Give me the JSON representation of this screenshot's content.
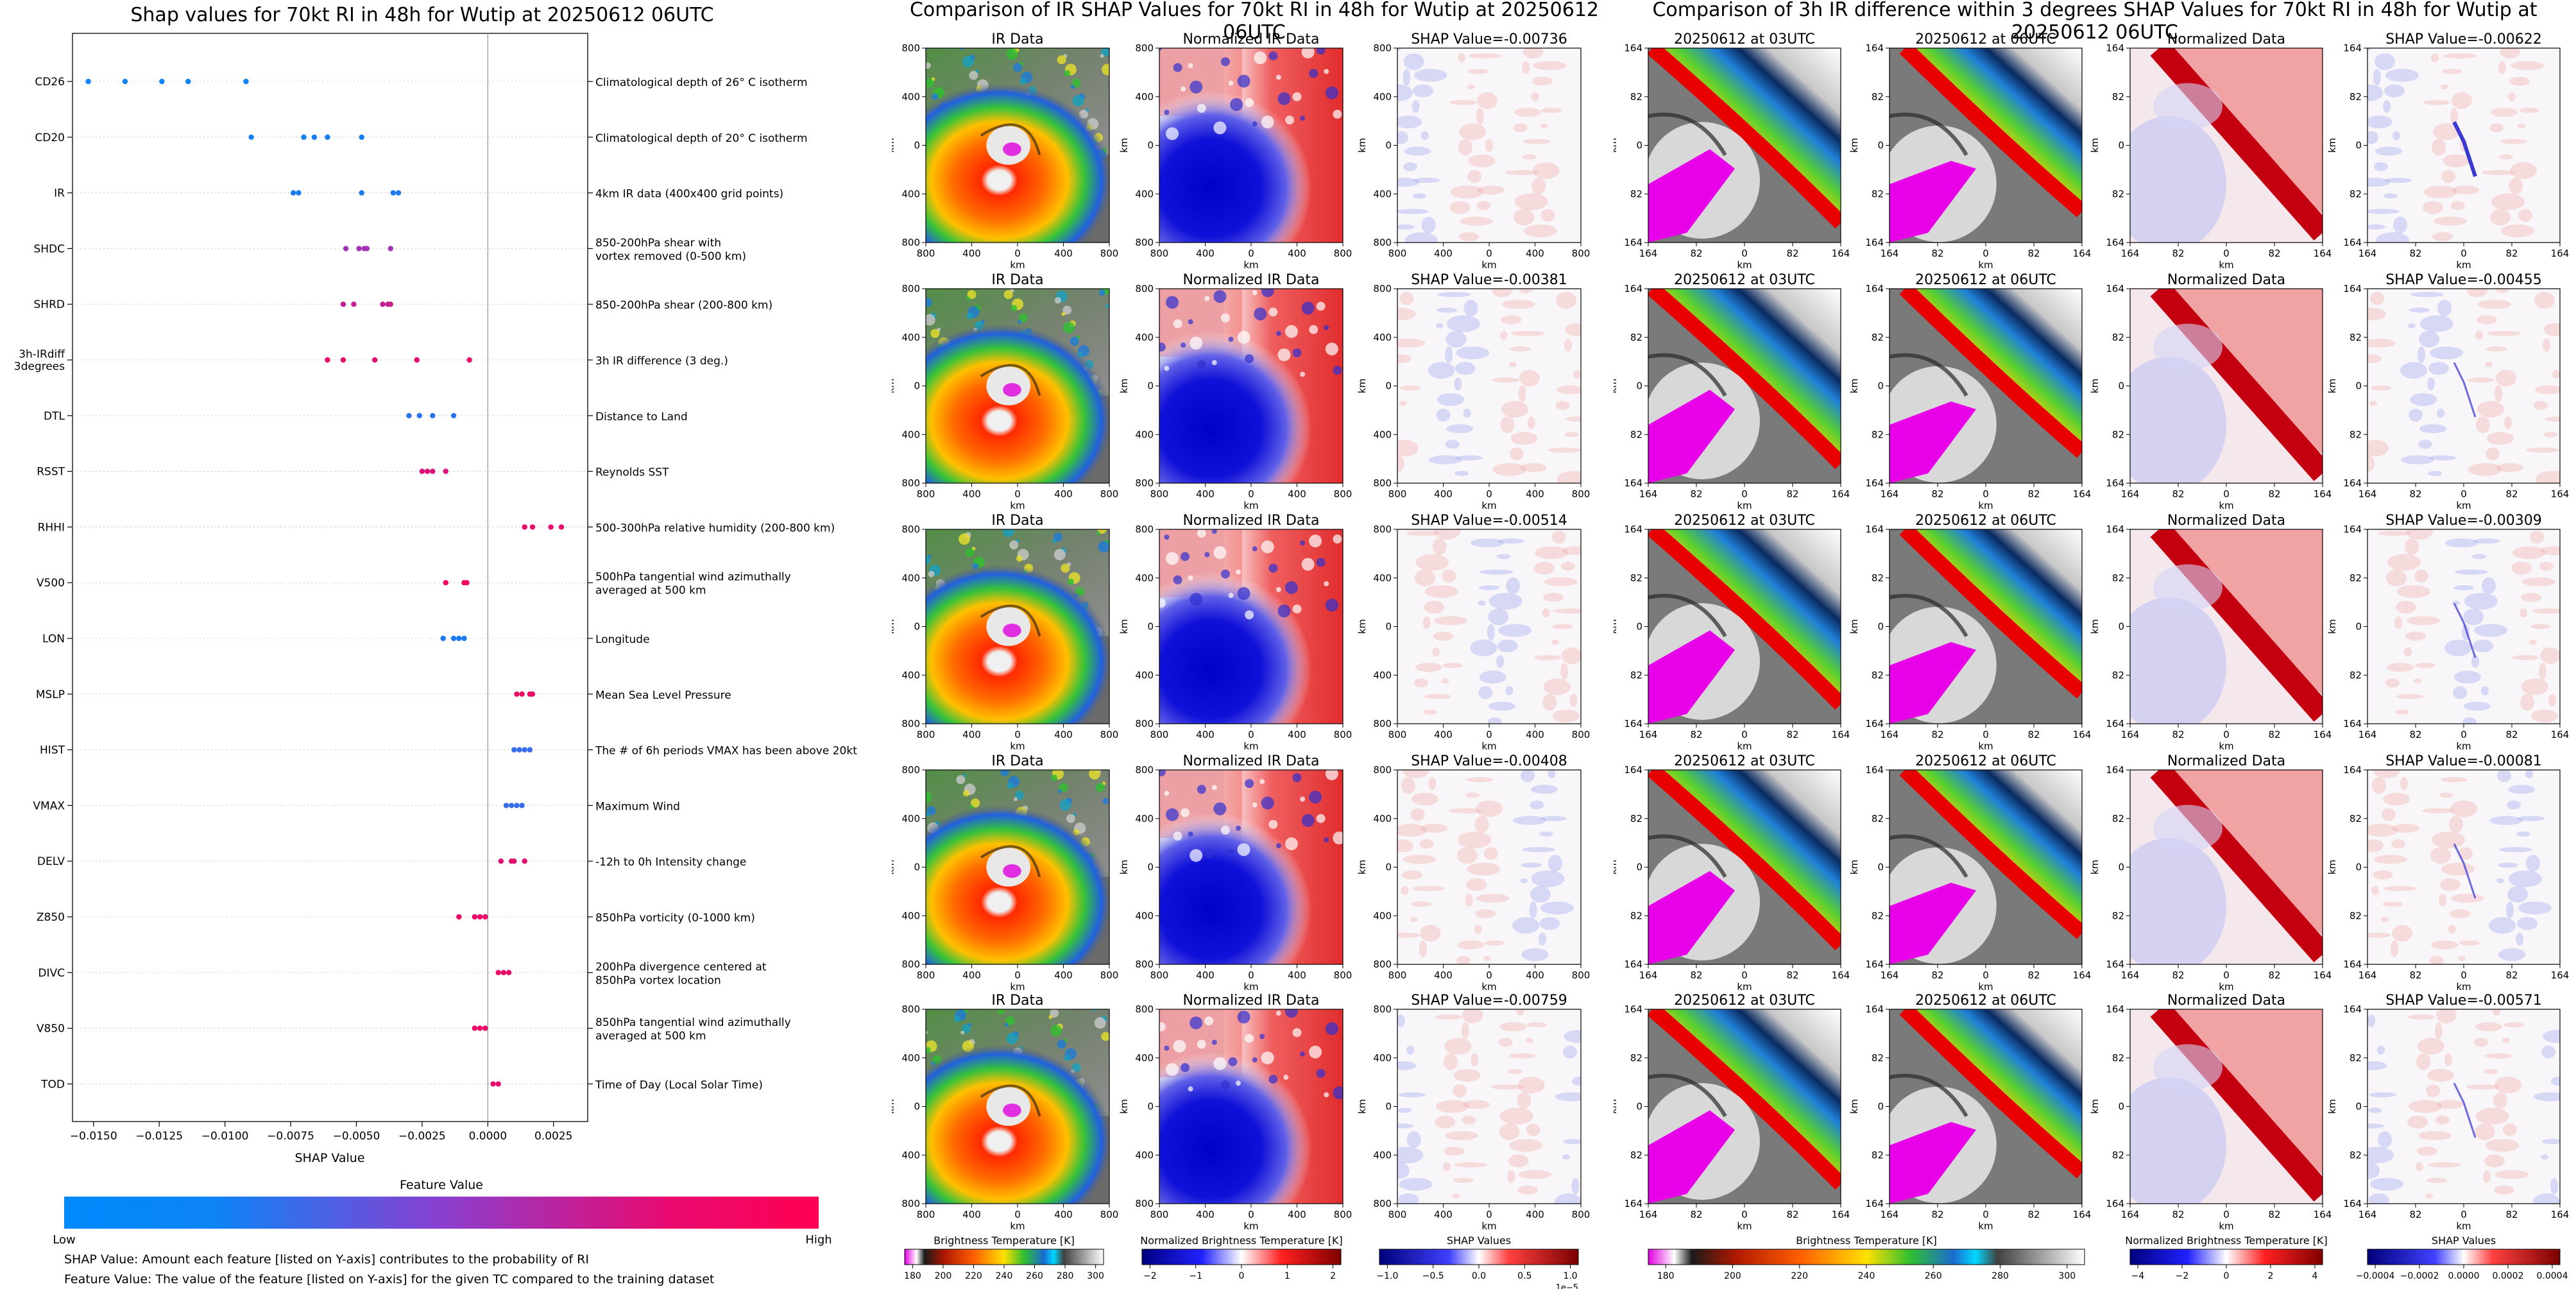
{
  "shap_chart": {
    "title": "Shap values for 70kt RI in 48h for Wutip at 20250612 06UTC",
    "xlabel": "SHAP Value",
    "xticks": [
      "−0.0150",
      "−0.0125",
      "−0.0100",
      "−0.0075",
      "−0.0050",
      "−0.0025",
      "0.0000",
      "0.0025"
    ],
    "colorbar_title": "Feature Value",
    "colorbar_low": "Low",
    "colorbar_high": "High",
    "footnote1": "SHAP Value: Amount each feature [listed on Y-axis] contributes to the probability of RI",
    "footnote2": "Feature Value: The value of the feature [listed on Y-axis] for the given TC compared to the training dataset",
    "colors": {
      "low": "#008afb",
      "mid": "#8a3fd0",
      "high": "#ff0052"
    }
  },
  "chart_data": [
    {
      "type": "scatter",
      "title": "Shap values for 70kt RI in 48h for Wutip at 20250612 06UTC",
      "xlabel": "SHAP Value",
      "xlim": [
        -0.0158,
        0.0038
      ],
      "features": [
        {
          "name": "CD26",
          "desc": [
            "Climatological depth of 26° C isotherm"
          ],
          "points": [
            -0.0152,
            -0.0138,
            -0.0124,
            -0.0114,
            -0.0092
          ],
          "feature_value": 0.05
        },
        {
          "name": "CD20",
          "desc": [
            "Climatological depth of 20° C isotherm"
          ],
          "points": [
            -0.009,
            -0.007,
            -0.0066,
            -0.0061,
            -0.0048
          ],
          "feature_value": 0.08
        },
        {
          "name": "IR",
          "desc": [
            "4km IR data (400x400 grid points)"
          ],
          "points": [
            -0.0074,
            -0.0072,
            -0.0048,
            -0.0036,
            -0.0034
          ],
          "feature_value": 0.1
        },
        {
          "name": "SHDC",
          "desc": [
            "850-200hPa shear with",
            "vortex removed (0-500 km)"
          ],
          "points": [
            -0.0054,
            -0.0049,
            -0.0047,
            -0.0046,
            -0.0037
          ],
          "feature_value": 0.6
        },
        {
          "name": "SHRD",
          "desc": [
            "850-200hPa shear (200-800 km)"
          ],
          "points": [
            -0.0055,
            -0.0051,
            -0.004,
            -0.0038,
            -0.0037
          ],
          "feature_value": 0.75
        },
        {
          "name": "3h-IRdiff\n3degrees",
          "desc": [
            "3h IR difference (3 deg.)"
          ],
          "points": [
            -0.0061,
            -0.0055,
            -0.0043,
            -0.0027,
            -0.0007
          ],
          "feature_value": 0.9
        },
        {
          "name": "DTL",
          "desc": [
            "Distance to Land"
          ],
          "points": [
            -0.003,
            -0.0026,
            -0.0021,
            -0.0013
          ],
          "feature_value": 0.15
        },
        {
          "name": "RSST",
          "desc": [
            "Reynolds SST"
          ],
          "points": [
            -0.0025,
            -0.0023,
            -0.0021,
            -0.0016
          ],
          "feature_value": 0.85
        },
        {
          "name": "RHHI",
          "desc": [
            "500-300hPa relative humidity (200-800 km)"
          ],
          "points": [
            0.0014,
            0.0017,
            0.0024,
            0.0028
          ],
          "feature_value": 0.9
        },
        {
          "name": "V500",
          "desc": [
            "500hPa tangential wind azimuthally",
            "averaged at 500 km"
          ],
          "points": [
            -0.0016,
            -0.0009,
            -0.0008
          ],
          "feature_value": 0.95
        },
        {
          "name": "LON",
          "desc": [
            "Longitude"
          ],
          "points": [
            -0.0017,
            -0.0013,
            -0.0011,
            -0.0009
          ],
          "feature_value": 0.1
        },
        {
          "name": "MSLP",
          "desc": [
            "Mean Sea Level Pressure"
          ],
          "points": [
            0.0011,
            0.0013,
            0.0016,
            0.0017
          ],
          "feature_value": 0.92
        },
        {
          "name": "HIST",
          "desc": [
            "The # of 6h periods VMAX has been above 20kt"
          ],
          "points": [
            0.001,
            0.0012,
            0.0014,
            0.0016
          ],
          "feature_value": 0.2
        },
        {
          "name": "VMAX",
          "desc": [
            "Maximum Wind"
          ],
          "points": [
            0.0007,
            0.0009,
            0.0011,
            0.0013
          ],
          "feature_value": 0.2
        },
        {
          "name": "DELV",
          "desc": [
            "-12h to 0h Intensity change"
          ],
          "points": [
            0.0005,
            0.0009,
            0.001,
            0.0014
          ],
          "feature_value": 0.88
        },
        {
          "name": "Z850",
          "desc": [
            "850hPa vorticity (0-1000 km)"
          ],
          "points": [
            -0.0011,
            -0.0005,
            -0.0003,
            -0.0001
          ],
          "feature_value": 0.92
        },
        {
          "name": "DIVC",
          "desc": [
            "200hPa divergence centered at",
            "850hPa vortex location"
          ],
          "points": [
            0.0004,
            0.0006,
            0.0008
          ],
          "feature_value": 0.92
        },
        {
          "name": "V850",
          "desc": [
            "850hPa tangential wind azimuthally",
            "averaged at 500 km"
          ],
          "points": [
            -0.0005,
            -0.0003,
            -0.0001
          ],
          "feature_value": 0.92
        },
        {
          "name": "TOD",
          "desc": [
            "Time of Day (Local Solar Time)"
          ],
          "points": [
            0.0002,
            0.0004
          ],
          "feature_value": 0.9
        }
      ]
    }
  ],
  "ir_section": {
    "title": "Comparison of IR SHAP Values for 70kt RI in 48h for Wutip at 20250612 06UTC",
    "columns": [
      "IR Data",
      "Normalized IR Data"
    ],
    "shap_titles": [
      "SHAP Value=-0.00736",
      "SHAP Value=-0.00381",
      "SHAP Value=-0.00514",
      "SHAP Value=-0.00408",
      "SHAP Value=-0.00759"
    ],
    "axis_label": "km",
    "ticks": [
      "800",
      "400",
      "0",
      "400",
      "800"
    ],
    "cb1": {
      "label": "Brightness Temperature [K]",
      "ticks": [
        "180",
        "200",
        "220",
        "240",
        "260",
        "280",
        "300"
      ]
    },
    "cb2": {
      "label": "Normalized Brightness Temperature [K]",
      "ticks": [
        "−2",
        "−1",
        "0",
        "1",
        "2"
      ]
    },
    "cb3": {
      "label": "SHAP Values",
      "ticks": [
        "−1.0",
        "−0.5",
        "0.0",
        "0.5",
        "1.0"
      ],
      "scale": "1e−5"
    }
  },
  "diff_section": {
    "title": "Comparison of 3h IR difference within 3 degrees SHAP Values for 70kt RI in 48h for Wutip at 20250612 06UTC",
    "columns": [
      "20250612 at 03UTC",
      "20250612 at 06UTC",
      "Normalized Data"
    ],
    "shap_titles": [
      "SHAP Value=-0.00622",
      "SHAP Value=-0.00455",
      "SHAP Value=-0.00309",
      "SHAP Value=-0.00081",
      "SHAP Value=-0.00571"
    ],
    "axis_label": "km",
    "ticks": [
      "164",
      "82",
      "0",
      "82",
      "164"
    ],
    "cb1": {
      "label": "Brightness Temperature [K]",
      "ticks": [
        "180",
        "200",
        "220",
        "240",
        "260",
        "280",
        "300"
      ]
    },
    "cb2": {
      "label": "Normalized Brightness Temperature [K]",
      "ticks": [
        "−4",
        "−2",
        "0",
        "2",
        "4"
      ]
    },
    "cb3": {
      "label": "SHAP Values",
      "ticks": [
        "−0.0004",
        "−0.0002",
        "0.0000",
        "0.0002",
        "0.0004"
      ]
    }
  }
}
